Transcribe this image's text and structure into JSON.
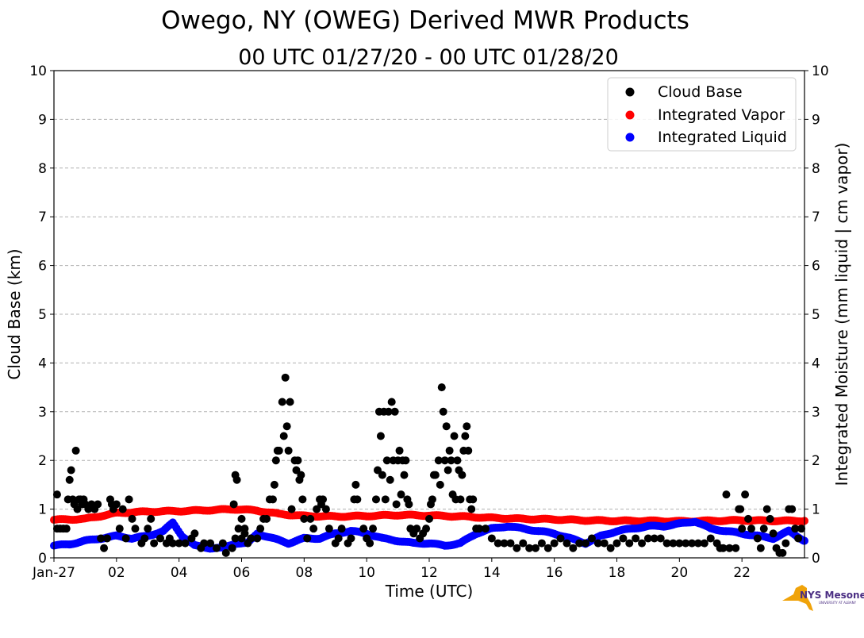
{
  "chart_data": {
    "type": "scatter",
    "title": "Owego, NY (OWEG) Derived MWR Products",
    "subtitle": "00 UTC 01/27/20 - 00 UTC 01/28/20",
    "xlabel": "Time (UTC)",
    "ylabel_left": "Cloud Base (km)",
    "ylabel_right": "Integrated Moisture (mm liquid | cm vapor)",
    "xlim": [
      0,
      24
    ],
    "ylim": [
      0,
      10
    ],
    "xticks": [
      {
        "value": 0,
        "label": "Jan-27"
      },
      {
        "value": 2,
        "label": "02"
      },
      {
        "value": 4,
        "label": "04"
      },
      {
        "value": 6,
        "label": "06"
      },
      {
        "value": 8,
        "label": "08"
      },
      {
        "value": 10,
        "label": "10"
      },
      {
        "value": 12,
        "label": "12"
      },
      {
        "value": 14,
        "label": "14"
      },
      {
        "value": 16,
        "label": "16"
      },
      {
        "value": 18,
        "label": "18"
      },
      {
        "value": 20,
        "label": "20"
      },
      {
        "value": 22,
        "label": "22"
      }
    ],
    "yticks": [
      "0",
      "1",
      "2",
      "3",
      "4",
      "5",
      "6",
      "7",
      "8",
      "9",
      "10"
    ],
    "grid": true,
    "legend_position": "top-right",
    "series": [
      {
        "name": "Cloud Base",
        "color": "#000000",
        "points": [
          [
            0.1,
            1.3
          ],
          [
            0.1,
            0.6
          ],
          [
            0.2,
            0.6
          ],
          [
            0.3,
            0.6
          ],
          [
            0.4,
            0.6
          ],
          [
            0.45,
            1.2
          ],
          [
            0.5,
            1.6
          ],
          [
            0.55,
            1.8
          ],
          [
            0.6,
            1.2
          ],
          [
            0.65,
            1.1
          ],
          [
            0.7,
            2.2
          ],
          [
            0.75,
            1.0
          ],
          [
            0.8,
            1.2
          ],
          [
            0.85,
            1.2
          ],
          [
            0.9,
            1.1
          ],
          [
            0.95,
            1.2
          ],
          [
            1.0,
            1.1
          ],
          [
            1.1,
            1.0
          ],
          [
            1.2,
            1.1
          ],
          [
            1.3,
            1.0
          ],
          [
            1.4,
            1.1
          ],
          [
            1.5,
            0.4
          ],
          [
            1.6,
            0.2
          ],
          [
            1.7,
            0.4
          ],
          [
            1.8,
            1.2
          ],
          [
            1.85,
            1.1
          ],
          [
            1.9,
            1.0
          ],
          [
            2.0,
            1.1
          ],
          [
            2.1,
            0.6
          ],
          [
            2.2,
            1.0
          ],
          [
            2.3,
            0.4
          ],
          [
            2.4,
            1.2
          ],
          [
            2.5,
            0.8
          ],
          [
            2.6,
            0.6
          ],
          [
            2.8,
            0.3
          ],
          [
            2.9,
            0.4
          ],
          [
            3.0,
            0.6
          ],
          [
            3.1,
            0.8
          ],
          [
            3.2,
            0.3
          ],
          [
            3.4,
            0.4
          ],
          [
            3.6,
            0.3
          ],
          [
            3.7,
            0.4
          ],
          [
            3.8,
            0.3
          ],
          [
            4.0,
            0.3
          ],
          [
            4.2,
            0.3
          ],
          [
            4.4,
            0.4
          ],
          [
            4.5,
            0.5
          ],
          [
            4.7,
            0.2
          ],
          [
            4.8,
            0.3
          ],
          [
            5.0,
            0.3
          ],
          [
            5.2,
            0.2
          ],
          [
            5.4,
            0.3
          ],
          [
            5.5,
            0.1
          ],
          [
            5.7,
            0.2
          ],
          [
            5.8,
            0.4
          ],
          [
            6.0,
            0.4
          ],
          [
            6.1,
            0.5
          ],
          [
            6.2,
            0.3
          ],
          [
            5.8,
            1.7
          ],
          [
            5.85,
            1.6
          ],
          [
            5.75,
            1.1
          ],
          [
            5.9,
            0.6
          ],
          [
            6.0,
            0.8
          ],
          [
            6.1,
            0.6
          ],
          [
            6.3,
            0.4
          ],
          [
            6.5,
            0.4
          ],
          [
            6.6,
            0.6
          ],
          [
            6.7,
            0.8
          ],
          [
            6.8,
            0.8
          ],
          [
            6.9,
            1.2
          ],
          [
            7.0,
            1.2
          ],
          [
            7.05,
            1.5
          ],
          [
            7.1,
            2.0
          ],
          [
            7.15,
            2.2
          ],
          [
            7.2,
            2.2
          ],
          [
            7.3,
            3.2
          ],
          [
            7.35,
            2.5
          ],
          [
            7.4,
            3.7
          ],
          [
            7.45,
            2.7
          ],
          [
            7.5,
            2.2
          ],
          [
            7.55,
            3.2
          ],
          [
            7.6,
            1.0
          ],
          [
            7.7,
            2.0
          ],
          [
            7.75,
            1.8
          ],
          [
            7.8,
            2.0
          ],
          [
            7.85,
            1.6
          ],
          [
            7.9,
            1.7
          ],
          [
            7.95,
            1.2
          ],
          [
            8.0,
            0.8
          ],
          [
            8.1,
            0.4
          ],
          [
            8.2,
            0.8
          ],
          [
            8.3,
            0.6
          ],
          [
            8.4,
            1.0
          ],
          [
            8.5,
            1.2
          ],
          [
            8.55,
            1.1
          ],
          [
            8.6,
            1.2
          ],
          [
            8.7,
            1.0
          ],
          [
            8.8,
            0.6
          ],
          [
            9.0,
            0.3
          ],
          [
            9.1,
            0.4
          ],
          [
            9.2,
            0.6
          ],
          [
            9.4,
            0.3
          ],
          [
            9.5,
            0.4
          ],
          [
            9.6,
            1.2
          ],
          [
            9.65,
            1.5
          ],
          [
            9.7,
            1.2
          ],
          [
            9.9,
            0.6
          ],
          [
            10.0,
            0.4
          ],
          [
            10.1,
            0.3
          ],
          [
            10.2,
            0.6
          ],
          [
            10.3,
            1.2
          ],
          [
            10.35,
            1.8
          ],
          [
            10.4,
            3.0
          ],
          [
            10.45,
            2.5
          ],
          [
            10.5,
            1.7
          ],
          [
            10.55,
            3.0
          ],
          [
            10.6,
            1.2
          ],
          [
            10.65,
            2.0
          ],
          [
            10.7,
            3.0
          ],
          [
            10.75,
            1.6
          ],
          [
            10.8,
            3.2
          ],
          [
            10.85,
            2.0
          ],
          [
            10.9,
            3.0
          ],
          [
            10.95,
            1.1
          ],
          [
            11.0,
            2.0
          ],
          [
            11.05,
            2.2
          ],
          [
            11.1,
            1.3
          ],
          [
            11.15,
            2.0
          ],
          [
            11.2,
            1.7
          ],
          [
            11.25,
            2.0
          ],
          [
            11.3,
            1.2
          ],
          [
            11.35,
            1.1
          ],
          [
            11.4,
            0.6
          ],
          [
            11.5,
            0.5
          ],
          [
            11.6,
            0.6
          ],
          [
            11.7,
            0.4
          ],
          [
            11.8,
            0.5
          ],
          [
            11.9,
            0.6
          ],
          [
            12.0,
            0.8
          ],
          [
            12.05,
            1.1
          ],
          [
            12.1,
            1.2
          ],
          [
            12.15,
            1.7
          ],
          [
            12.2,
            1.7
          ],
          [
            12.3,
            2.0
          ],
          [
            12.35,
            1.5
          ],
          [
            12.4,
            3.5
          ],
          [
            12.45,
            3.0
          ],
          [
            12.5,
            2.0
          ],
          [
            12.55,
            2.7
          ],
          [
            12.6,
            1.8
          ],
          [
            12.65,
            2.2
          ],
          [
            12.7,
            2.0
          ],
          [
            12.75,
            1.3
          ],
          [
            12.8,
            2.5
          ],
          [
            12.85,
            1.2
          ],
          [
            12.9,
            2.0
          ],
          [
            12.95,
            1.8
          ],
          [
            13.0,
            1.2
          ],
          [
            13.05,
            1.7
          ],
          [
            13.1,
            2.2
          ],
          [
            13.15,
            2.5
          ],
          [
            13.2,
            2.7
          ],
          [
            13.25,
            2.2
          ],
          [
            13.3,
            1.2
          ],
          [
            13.35,
            1.0
          ],
          [
            13.4,
            1.2
          ],
          [
            13.5,
            0.6
          ],
          [
            13.6,
            0.6
          ],
          [
            13.8,
            0.6
          ],
          [
            14.0,
            0.4
          ],
          [
            14.2,
            0.3
          ],
          [
            14.4,
            0.3
          ],
          [
            14.6,
            0.3
          ],
          [
            14.8,
            0.2
          ],
          [
            15.0,
            0.3
          ],
          [
            15.2,
            0.2
          ],
          [
            15.4,
            0.2
          ],
          [
            15.6,
            0.3
          ],
          [
            15.8,
            0.2
          ],
          [
            16.0,
            0.3
          ],
          [
            16.2,
            0.4
          ],
          [
            16.4,
            0.3
          ],
          [
            16.6,
            0.2
          ],
          [
            16.8,
            0.3
          ],
          [
            17.0,
            0.3
          ],
          [
            17.2,
            0.4
          ],
          [
            17.4,
            0.3
          ],
          [
            17.6,
            0.3
          ],
          [
            17.8,
            0.2
          ],
          [
            18.0,
            0.3
          ],
          [
            18.2,
            0.4
          ],
          [
            18.4,
            0.3
          ],
          [
            18.6,
            0.4
          ],
          [
            18.8,
            0.3
          ],
          [
            19.0,
            0.4
          ],
          [
            19.2,
            0.4
          ],
          [
            19.4,
            0.4
          ],
          [
            19.6,
            0.3
          ],
          [
            19.8,
            0.3
          ],
          [
            20.0,
            0.3
          ],
          [
            20.2,
            0.3
          ],
          [
            20.4,
            0.3
          ],
          [
            20.6,
            0.3
          ],
          [
            20.8,
            0.3
          ],
          [
            21.0,
            0.4
          ],
          [
            21.2,
            0.3
          ],
          [
            21.3,
            0.2
          ],
          [
            21.4,
            0.2
          ],
          [
            21.5,
            1.3
          ],
          [
            21.6,
            0.2
          ],
          [
            21.8,
            0.2
          ],
          [
            21.9,
            1.0
          ],
          [
            21.95,
            1.0
          ],
          [
            22.0,
            0.6
          ],
          [
            22.1,
            1.3
          ],
          [
            22.2,
            0.8
          ],
          [
            22.3,
            0.6
          ],
          [
            22.5,
            0.4
          ],
          [
            22.6,
            0.2
          ],
          [
            22.7,
            0.6
          ],
          [
            22.8,
            1.0
          ],
          [
            22.9,
            0.8
          ],
          [
            23.0,
            0.5
          ],
          [
            23.1,
            0.2
          ],
          [
            23.2,
            0.1
          ],
          [
            23.3,
            0.1
          ],
          [
            23.4,
            0.3
          ],
          [
            23.5,
            1.0
          ],
          [
            23.6,
            1.0
          ],
          [
            23.7,
            0.6
          ],
          [
            23.8,
            0.4
          ],
          [
            23.9,
            0.6
          ]
        ]
      },
      {
        "name": "Integrated Vapor",
        "color": "#ff0000",
        "points": [
          [
            0,
            0.78
          ],
          [
            1,
            0.8
          ],
          [
            1.5,
            0.86
          ],
          [
            2,
            0.92
          ],
          [
            3,
            0.95
          ],
          [
            4,
            0.96
          ],
          [
            5,
            0.98
          ],
          [
            5.8,
            1.0
          ],
          [
            6.5,
            0.97
          ],
          [
            7.2,
            0.9
          ],
          [
            8,
            0.86
          ],
          [
            9,
            0.85
          ],
          [
            10,
            0.86
          ],
          [
            11,
            0.88
          ],
          [
            12,
            0.87
          ],
          [
            13,
            0.85
          ],
          [
            14,
            0.82
          ],
          [
            15,
            0.8
          ],
          [
            16,
            0.79
          ],
          [
            17,
            0.77
          ],
          [
            18,
            0.76
          ],
          [
            19,
            0.76
          ],
          [
            20,
            0.75
          ],
          [
            21,
            0.76
          ],
          [
            22,
            0.77
          ],
          [
            23,
            0.76
          ],
          [
            24,
            0.76
          ]
        ]
      },
      {
        "name": "Integrated Liquid",
        "color": "#0000ff",
        "points": [
          [
            0,
            0.25
          ],
          [
            0.5,
            0.28
          ],
          [
            1,
            0.35
          ],
          [
            1.5,
            0.4
          ],
          [
            2,
            0.45
          ],
          [
            2.5,
            0.4
          ],
          [
            3,
            0.45
          ],
          [
            3.5,
            0.55
          ],
          [
            3.8,
            0.72
          ],
          [
            4.1,
            0.45
          ],
          [
            4.5,
            0.25
          ],
          [
            5,
            0.2
          ],
          [
            5.4,
            0.2
          ],
          [
            5.8,
            0.3
          ],
          [
            6.2,
            0.3
          ],
          [
            6.5,
            0.5
          ],
          [
            7,
            0.4
          ],
          [
            7.5,
            0.3
          ],
          [
            8,
            0.4
          ],
          [
            8.5,
            0.4
          ],
          [
            9,
            0.5
          ],
          [
            9.5,
            0.55
          ],
          [
            10,
            0.5
          ],
          [
            10.5,
            0.4
          ],
          [
            11,
            0.35
          ],
          [
            11.5,
            0.3
          ],
          [
            12,
            0.3
          ],
          [
            12.5,
            0.25
          ],
          [
            13,
            0.3
          ],
          [
            13.5,
            0.5
          ],
          [
            14,
            0.6
          ],
          [
            14.5,
            0.65
          ],
          [
            15,
            0.6
          ],
          [
            15.5,
            0.55
          ],
          [
            16,
            0.5
          ],
          [
            16.5,
            0.4
          ],
          [
            17,
            0.3
          ],
          [
            17.5,
            0.45
          ],
          [
            18,
            0.55
          ],
          [
            18.5,
            0.6
          ],
          [
            19,
            0.65
          ],
          [
            19.5,
            0.65
          ],
          [
            20,
            0.7
          ],
          [
            20.5,
            0.75
          ],
          [
            21,
            0.6
          ],
          [
            21.5,
            0.55
          ],
          [
            22,
            0.5
          ],
          [
            22.5,
            0.45
          ],
          [
            23,
            0.4
          ],
          [
            23.5,
            0.55
          ],
          [
            24,
            0.35
          ]
        ]
      }
    ]
  },
  "logo": {
    "text": "NYS Mesonet",
    "subtext": "UNIVERSITY AT ALBANY",
    "color_state": "#f0a30a",
    "color_text": "#4b2e83"
  }
}
